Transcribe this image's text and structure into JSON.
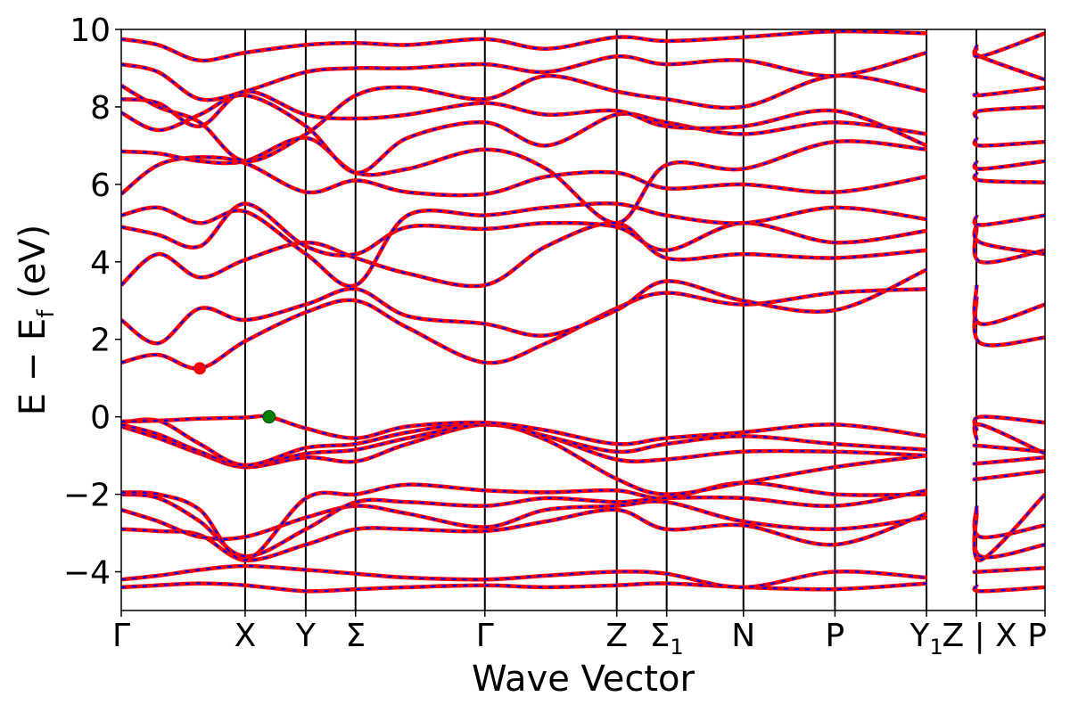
{
  "chart_data": {
    "type": "line",
    "xlabel": "Wave Vector",
    "ylabel": "E − E",
    "ylabel_sub": "f",
    "ylabel_unit": " (eV)",
    "ylim": [
      -5,
      10
    ],
    "yticks": [
      10,
      8,
      6,
      4,
      2,
      0,
      -2,
      -4
    ],
    "ytick_labels": [
      "10",
      "8",
      "6",
      "4",
      "2",
      "0",
      "−2",
      "−4"
    ],
    "grid": false,
    "xlim": [
      0,
      1
    ],
    "kpoints": [
      {
        "label": "Γ",
        "x": 0.0
      },
      {
        "label": "X",
        "x": 0.1341
      },
      {
        "label": "Y",
        "x": 0.1997
      },
      {
        "label": "Σ",
        "x": 0.2536
      },
      {
        "label": "Γ",
        "x": 0.3936
      },
      {
        "label": "Z",
        "x": 0.5364
      },
      {
        "label": "Σ",
        "sub": "1",
        "x": 0.5904
      },
      {
        "label": "N",
        "x": 0.6735
      },
      {
        "label": "P",
        "x": 0.7726
      },
      {
        "label": "Y",
        "sub": "1",
        "x": 0.8717
      },
      {
        "label": "Z",
        "x": 0.9257
      },
      {
        "label": "X",
        "x": 1.0
      }
    ],
    "top_label": "Z | X P",
    "segment_break_x": 0.9257,
    "band_colors": {
      "primary": "#ff0000",
      "secondary": "#0000ff"
    },
    "cbm": {
      "x": 0.085,
      "y": 1.25,
      "color": "#ff0000"
    },
    "vbm": {
      "x": 0.16,
      "y": 0.0,
      "color": "#008000"
    },
    "series": [
      {
        "x": [
          0,
          0.04,
          0.085,
          0.134,
          0.2,
          0.254,
          0.31,
          0.3936,
          0.46,
          0.536,
          0.59,
          0.673,
          0.772,
          0.872,
          0.926,
          0.93,
          1.0
        ],
        "y": [
          -4.4,
          -4.35,
          -4.3,
          -4.35,
          -4.5,
          -4.45,
          -4.4,
          -4.35,
          -4.4,
          -4.35,
          -4.3,
          -4.4,
          -4.45,
          -4.3,
          -4.35,
          -4.5,
          -4.4
        ]
      },
      {
        "x": [
          0,
          0.04,
          0.085,
          0.134,
          0.2,
          0.254,
          0.31,
          0.3936,
          0.46,
          0.536,
          0.59,
          0.673,
          0.772,
          0.872,
          0.926,
          0.93,
          1.0
        ],
        "y": [
          -4.2,
          -4.1,
          -3.95,
          -3.85,
          -3.95,
          -4.05,
          -4.15,
          -4.2,
          -4.1,
          -4.0,
          -4.05,
          -4.4,
          -4.0,
          -4.15,
          -4.0,
          -4.0,
          -3.9
        ]
      },
      {
        "x": [
          0,
          0.04,
          0.085,
          0.134,
          0.2,
          0.254,
          0.31,
          0.3936,
          0.46,
          0.536,
          0.59,
          0.673,
          0.772,
          0.872,
          0.926,
          0.93,
          1.0
        ],
        "y": [
          -2.9,
          -2.95,
          -3.05,
          -3.7,
          -3.3,
          -2.9,
          -2.9,
          -2.95,
          -2.7,
          -2.4,
          -2.9,
          -2.8,
          -3.3,
          -2.5,
          -2.5,
          -3.6,
          -3.3
        ]
      },
      {
        "x": [
          0,
          0.04,
          0.085,
          0.134,
          0.2,
          0.254,
          0.31,
          0.3936,
          0.46,
          0.536,
          0.59,
          0.673,
          0.772,
          0.872,
          0.926,
          0.93,
          1.0
        ],
        "y": [
          -2.4,
          -2.7,
          -3.1,
          -3.1,
          -2.6,
          -2.3,
          -2.5,
          -2.85,
          -2.4,
          -2.3,
          -2.2,
          -2.7,
          -2.9,
          -2.6,
          -2.3,
          -3.1,
          -2.8
        ]
      },
      {
        "x": [
          0,
          0.04,
          0.085,
          0.134,
          0.2,
          0.254,
          0.31,
          0.3936,
          0.46,
          0.536,
          0.59,
          0.673,
          0.772,
          0.872,
          0.926,
          0.93,
          1.0
        ],
        "y": [
          -2.0,
          -2.1,
          -2.7,
          -3.6,
          -2.9,
          -2.2,
          -2.2,
          -2.3,
          -2.1,
          -2.2,
          -2.1,
          -2.1,
          -2.3,
          -1.9,
          -2.4,
          -3.7,
          -2.0
        ]
      },
      {
        "x": [
          0,
          0.04,
          0.085,
          0.134,
          0.2,
          0.254,
          0.31,
          0.3936,
          0.46,
          0.536,
          0.59,
          0.673,
          0.772,
          0.872,
          0.926,
          0.93,
          1.0
        ],
        "y": [
          -1.95,
          -2.0,
          -2.4,
          -3.7,
          -2.1,
          -2.0,
          -1.75,
          -1.9,
          -1.95,
          -1.9,
          -2.1,
          -1.7,
          -2.0,
          -2.0,
          -1.6,
          -1.6,
          -1.4
        ]
      },
      {
        "x": [
          0,
          0.04,
          0.085,
          0.134,
          0.2,
          0.254,
          0.31,
          0.3936,
          0.46,
          0.536,
          0.59,
          0.673,
          0.772,
          0.872,
          0.926,
          0.93,
          1.0
        ],
        "y": [
          -0.25,
          -0.55,
          -0.95,
          -1.3,
          -1.05,
          -1.15,
          -0.7,
          -0.2,
          -0.6,
          -1.6,
          -2.0,
          -1.7,
          -1.3,
          -1.0,
          -1.2,
          -1.2,
          -1.05
        ]
      },
      {
        "x": [
          0,
          0.04,
          0.085,
          0.134,
          0.2,
          0.254,
          0.31,
          0.3936,
          0.46,
          0.536,
          0.59,
          0.673,
          0.772,
          0.872,
          0.926,
          0.93,
          1.0
        ],
        "y": [
          -0.2,
          -0.45,
          -0.9,
          -1.25,
          -0.95,
          -0.85,
          -0.55,
          -0.2,
          -0.5,
          -1.1,
          -1.1,
          -0.9,
          -0.9,
          -1.0,
          -0.75,
          -0.75,
          -0.9
        ]
      },
      {
        "x": [
          0,
          0.04,
          0.085,
          0.134,
          0.2,
          0.254,
          0.31,
          0.3936,
          0.46,
          0.536,
          0.59,
          0.673,
          0.772,
          0.872,
          0.926,
          0.93,
          1.0
        ],
        "y": [
          -0.15,
          -0.1,
          -0.7,
          -1.25,
          -0.8,
          -0.7,
          -0.4,
          -0.15,
          -0.5,
          -0.9,
          -0.7,
          -0.5,
          -0.7,
          -0.85,
          -0.6,
          -0.2,
          -0.95
        ]
      },
      {
        "x": [
          0,
          0.04,
          0.085,
          0.134,
          0.16,
          0.2,
          0.254,
          0.31,
          0.3936,
          0.46,
          0.536,
          0.59,
          0.673,
          0.772,
          0.872,
          0.926,
          0.93,
          1.0
        ],
        "y": [
          -0.12,
          -0.1,
          -0.05,
          -0.02,
          0.0,
          -0.3,
          -0.55,
          -0.25,
          -0.15,
          -0.35,
          -0.7,
          -0.55,
          -0.4,
          -0.2,
          -0.5,
          -0.35,
          0.0,
          -0.15
        ]
      },
      {
        "x": [
          0,
          0.04,
          0.085,
          0.134,
          0.2,
          0.254,
          0.31,
          0.3936,
          0.46,
          0.536,
          0.59,
          0.673,
          0.772,
          0.872,
          0.926,
          0.93,
          1.0
        ],
        "y": [
          1.4,
          1.6,
          1.25,
          1.95,
          2.7,
          3.0,
          2.3,
          1.4,
          1.9,
          2.8,
          3.2,
          2.9,
          3.2,
          3.3,
          3.1,
          1.9,
          2.05
        ]
      },
      {
        "x": [
          0,
          0.04,
          0.085,
          0.134,
          0.2,
          0.254,
          0.31,
          0.3936,
          0.46,
          0.536,
          0.59,
          0.673,
          0.772,
          0.872,
          0.926,
          0.93,
          1.0
        ],
        "y": [
          2.5,
          1.9,
          2.8,
          2.5,
          2.9,
          3.3,
          2.6,
          2.4,
          2.1,
          2.75,
          3.5,
          3.0,
          2.75,
          3.8,
          3.4,
          2.4,
          2.9
        ]
      },
      {
        "x": [
          0,
          0.04,
          0.085,
          0.134,
          0.2,
          0.254,
          0.31,
          0.3936,
          0.46,
          0.536,
          0.59,
          0.673,
          0.772,
          0.872,
          0.926,
          0.93,
          1.0
        ],
        "y": [
          3.4,
          4.2,
          3.6,
          4.05,
          4.5,
          4.1,
          3.7,
          3.4,
          4.4,
          5.0,
          4.1,
          4.2,
          4.1,
          4.3,
          4.9,
          4.0,
          4.3
        ]
      },
      {
        "x": [
          0,
          0.04,
          0.085,
          0.134,
          0.2,
          0.254,
          0.31,
          0.3936,
          0.46,
          0.536,
          0.59,
          0.673,
          0.772,
          0.872,
          0.926,
          0.93,
          1.0
        ],
        "y": [
          4.9,
          4.7,
          4.4,
          5.5,
          4.4,
          4.2,
          4.9,
          4.85,
          5.0,
          4.9,
          4.3,
          5.0,
          4.5,
          4.8,
          5.0,
          4.5,
          4.2
        ]
      },
      {
        "x": [
          0,
          0.04,
          0.085,
          0.134,
          0.2,
          0.254,
          0.31,
          0.3936,
          0.46,
          0.536,
          0.59,
          0.673,
          0.772,
          0.872,
          0.926,
          0.93,
          1.0
        ],
        "y": [
          5.2,
          5.4,
          5.0,
          5.3,
          4.2,
          3.4,
          5.2,
          5.2,
          5.4,
          5.5,
          5.2,
          5.0,
          5.4,
          5.1,
          5.2,
          4.95,
          5.2
        ]
      },
      {
        "x": [
          0,
          0.04,
          0.085,
          0.134,
          0.2,
          0.254,
          0.31,
          0.3936,
          0.46,
          0.536,
          0.59,
          0.673,
          0.772,
          0.872,
          0.926,
          0.93,
          1.0
        ],
        "y": [
          5.75,
          6.5,
          6.7,
          6.55,
          5.8,
          6.1,
          5.8,
          5.75,
          6.2,
          6.3,
          5.9,
          6.0,
          5.8,
          6.2,
          6.3,
          6.1,
          6.05
        ]
      },
      {
        "x": [
          0,
          0.04,
          0.085,
          0.134,
          0.2,
          0.254,
          0.31,
          0.3936,
          0.46,
          0.536,
          0.59,
          0.673,
          0.772,
          0.872,
          0.926,
          0.93,
          1.0
        ],
        "y": [
          6.85,
          6.8,
          6.6,
          6.6,
          7.2,
          6.3,
          6.4,
          6.9,
          6.4,
          5.0,
          6.5,
          6.4,
          7.1,
          6.9,
          6.6,
          6.4,
          6.6
        ]
      },
      {
        "x": [
          0,
          0.04,
          0.085,
          0.134,
          0.2,
          0.254,
          0.31,
          0.3936,
          0.46,
          0.536,
          0.59,
          0.673,
          0.772,
          0.872,
          0.926,
          0.93,
          1.0
        ],
        "y": [
          7.85,
          7.4,
          7.8,
          8.3,
          7.5,
          6.3,
          7.2,
          7.6,
          7.0,
          7.8,
          7.6,
          7.3,
          7.6,
          7.3,
          7.2,
          7.0,
          7.1
        ]
      },
      {
        "x": [
          0,
          0.04,
          0.085,
          0.134,
          0.2,
          0.254,
          0.31,
          0.3936,
          0.46,
          0.536,
          0.59,
          0.673,
          0.772,
          0.872,
          0.926,
          0.93,
          1.0
        ],
        "y": [
          8.2,
          8.1,
          7.5,
          8.4,
          7.8,
          7.7,
          7.8,
          8.1,
          7.8,
          7.9,
          7.5,
          7.5,
          7.9,
          7.0,
          7.7,
          7.9,
          8.0
        ]
      },
      {
        "x": [
          0,
          0.04,
          0.085,
          0.134,
          0.2,
          0.254,
          0.31,
          0.3936,
          0.46,
          0.536,
          0.59,
          0.673,
          0.772,
          0.872,
          0.926,
          0.93,
          1.0
        ],
        "y": [
          8.55,
          8.0,
          7.6,
          6.6,
          7.3,
          8.3,
          8.5,
          8.2,
          8.8,
          8.4,
          8.2,
          8.0,
          8.8,
          8.4,
          8.35,
          8.3,
          8.5
        ]
      },
      {
        "x": [
          0,
          0.04,
          0.085,
          0.134,
          0.2,
          0.254,
          0.31,
          0.3936,
          0.46,
          0.536,
          0.59,
          0.673,
          0.772,
          0.872,
          0.926,
          0.93,
          1.0
        ],
        "y": [
          9.1,
          8.9,
          8.2,
          8.4,
          8.9,
          9.0,
          9.0,
          9.1,
          8.9,
          9.3,
          9.1,
          9.2,
          8.8,
          9.4,
          9.5,
          9.3,
          8.7
        ]
      },
      {
        "x": [
          0,
          0.04,
          0.085,
          0.134,
          0.2,
          0.254,
          0.31,
          0.3936,
          0.46,
          0.536,
          0.59,
          0.673,
          0.772,
          0.872,
          0.926,
          0.93,
          1.0
        ],
        "y": [
          9.75,
          9.6,
          9.2,
          9.4,
          9.6,
          9.65,
          9.6,
          9.75,
          9.5,
          9.8,
          9.7,
          9.8,
          9.95,
          9.9,
          9.6,
          9.3,
          9.9
        ]
      }
    ]
  }
}
